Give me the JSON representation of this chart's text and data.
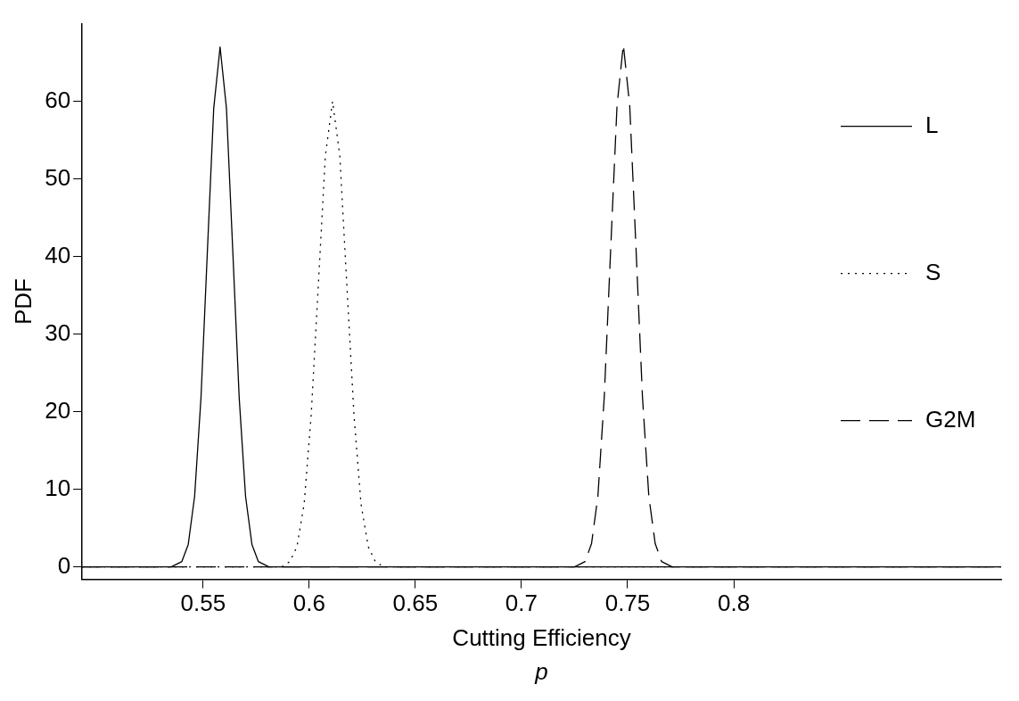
{
  "chart_data": {
    "type": "line",
    "xlabel": "Cutting Efficiency",
    "ylabel": "PDF",
    "annotations": [
      "p"
    ],
    "xlim": [
      0.493,
      0.926
    ],
    "ylim": [
      -1.6,
      70
    ],
    "xticks": [
      0.55,
      0.6,
      0.65,
      0.7,
      0.75,
      0.8
    ],
    "yticks": [
      0,
      10,
      20,
      30,
      40,
      50,
      60
    ],
    "grid": false,
    "legend": "top right",
    "marker": "none",
    "series": [
      {
        "name": "L",
        "color": "#000000",
        "line_style": "solid",
        "x": [
          0.493,
          0.535,
          0.54,
          0.543,
          0.546,
          0.549,
          0.552,
          0.555,
          0.558,
          0.561,
          0.564,
          0.567,
          0.57,
          0.573,
          0.576,
          0.581,
          0.926
        ],
        "values": [
          0,
          0,
          0.7,
          2.9,
          9.1,
          21.8,
          40.6,
          59.1,
          67,
          59.1,
          40.6,
          21.8,
          9.1,
          2.9,
          0.7,
          0,
          0
        ]
      },
      {
        "name": "S",
        "color": "#000000",
        "line_style": "dotted",
        "x": [
          0.493,
          0.587,
          0.5909,
          0.5942,
          0.5976,
          0.6009,
          0.6043,
          0.6076,
          0.611,
          0.6144,
          0.6177,
          0.6211,
          0.6244,
          0.6278,
          0.6311,
          0.635,
          0.926
        ],
        "values": [
          0,
          0,
          0.7,
          2.6,
          8.1,
          19.5,
          36.4,
          53,
          60,
          53,
          36.4,
          19.5,
          8.1,
          2.6,
          0.7,
          0,
          0
        ]
      },
      {
        "name": "G2M",
        "color": "#000000",
        "line_style": "dashed",
        "x": [
          0.493,
          0.725,
          0.73,
          0.733,
          0.736,
          0.739,
          0.742,
          0.745,
          0.748,
          0.751,
          0.754,
          0.757,
          0.76,
          0.763,
          0.766,
          0.771,
          0.926
        ],
        "values": [
          0,
          0,
          0.7,
          3,
          9.1,
          21.9,
          40.8,
          59.4,
          67.3,
          59.4,
          40.8,
          21.9,
          9.1,
          3,
          0.7,
          0,
          0
        ]
      }
    ]
  }
}
